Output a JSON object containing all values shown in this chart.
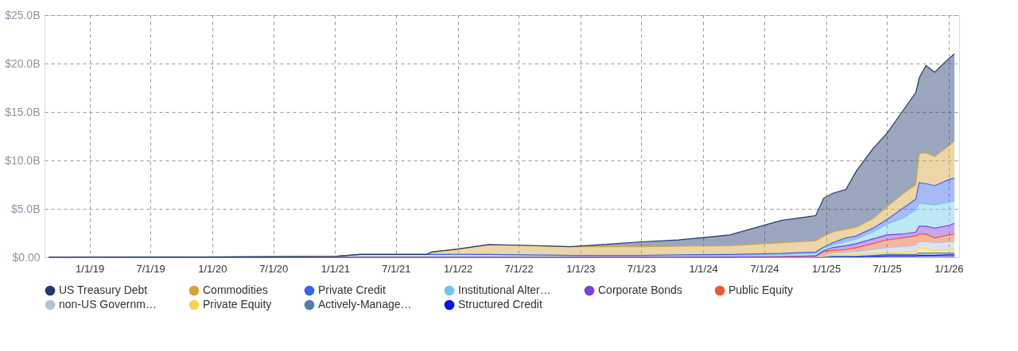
{
  "chart_data": {
    "type": "area",
    "stacked": true,
    "x": [
      "2018-09-01",
      "2019-06-01",
      "2020-06-01",
      "2021-01-01",
      "2021-03-15",
      "2021-10-01",
      "2021-10-15",
      "2022-01-01",
      "2022-04-01",
      "2022-07-01",
      "2022-12-01",
      "2023-03-01",
      "2023-07-01",
      "2023-10-20",
      "2024-03-20",
      "2024-08-20",
      "2024-12-01",
      "2024-12-25",
      "2025-01-20",
      "2025-03-01",
      "2025-04-01",
      "2025-05-20",
      "2025-07-01",
      "2025-08-15",
      "2025-09-25",
      "2025-10-05",
      "2025-10-25",
      "2025-11-20",
      "2026-01-01",
      "2026-01-18"
    ],
    "series": [
      {
        "name": "Structured Credit",
        "color": "#0a14f0",
        "values": [
          0,
          0,
          0,
          0,
          0,
          0,
          0,
          0,
          0,
          0,
          0,
          0,
          0,
          0,
          0,
          0,
          0,
          0.02,
          0.05,
          0.05,
          0.05,
          0.1,
          0.15,
          0.15,
          0.15,
          0.2,
          0.2,
          0.2,
          0.25,
          0.25
        ]
      },
      {
        "name": "Actively-Manage…",
        "color": "#4f7fb0",
        "values": [
          0,
          0,
          0,
          0,
          0,
          0,
          0,
          0,
          0,
          0,
          0,
          0,
          0,
          0,
          0,
          0,
          0.02,
          0.03,
          0.05,
          0.05,
          0.07,
          0.1,
          0.15,
          0.15,
          0.15,
          0.25,
          0.25,
          0.25,
          0.2,
          0.2
        ]
      },
      {
        "name": "Private Equity",
        "color": "#f7d44a",
        "values": [
          0,
          0,
          0,
          0,
          0,
          0,
          0,
          0,
          0,
          0,
          0,
          0,
          0,
          0,
          0,
          0,
          0,
          0.03,
          0.15,
          0.15,
          0.18,
          0.2,
          0.15,
          0.2,
          0.3,
          0.55,
          0.45,
          0.25,
          0.35,
          0.4
        ]
      },
      {
        "name": "non-US Governm…",
        "color": "#b4c3dc",
        "values": [
          0,
          0,
          0,
          0,
          0,
          0,
          0,
          0,
          0,
          0,
          0,
          0,
          0,
          0,
          0,
          0,
          0.03,
          0.12,
          0.2,
          0.25,
          0.3,
          0.4,
          0.55,
          0.6,
          0.65,
          0.6,
          0.7,
          0.8,
          0.8,
          0.75
        ]
      },
      {
        "name": "Public Equity",
        "color": "#eb5a2e",
        "values": [
          0,
          0,
          0,
          0,
          0,
          0,
          0,
          0,
          0,
          0,
          0,
          0.02,
          0.02,
          0.02,
          0.03,
          0.03,
          0.05,
          0.4,
          0.25,
          0.3,
          0.4,
          0.6,
          0.8,
          0.9,
          0.95,
          0.8,
          0.8,
          0.5,
          0.7,
          0.8
        ]
      },
      {
        "name": "Corporate Bonds",
        "color": "#7b3fe0",
        "values": [
          0,
          0,
          0,
          0,
          0,
          0,
          0,
          0,
          0,
          0,
          0,
          0,
          0,
          0,
          0,
          0.05,
          0.05,
          0.1,
          0.3,
          0.4,
          0.4,
          0.5,
          0.5,
          0.4,
          0.4,
          0.8,
          0.8,
          1.0,
          1.0,
          1.1
        ]
      },
      {
        "name": "Institutional Alter…",
        "color": "#6ec9e8",
        "values": [
          0.02,
          0.03,
          0.05,
          0.1,
          0.3,
          0.3,
          0.3,
          0.3,
          0.3,
          0.25,
          0.2,
          0.18,
          0.18,
          0.18,
          0.17,
          0.22,
          0.25,
          0.3,
          0.25,
          0.4,
          0.5,
          0.7,
          1.1,
          1.6,
          2.3,
          2.4,
          2.3,
          2.4,
          2.4,
          2.3
        ]
      },
      {
        "name": "Private Credit",
        "color": "#3d63f0",
        "values": [
          0,
          0,
          0,
          0,
          0,
          0,
          0,
          0,
          0,
          0,
          0,
          0,
          0,
          0.05,
          0.1,
          0.1,
          0.15,
          0.05,
          0.25,
          0.4,
          0.3,
          0.4,
          0.5,
          1.0,
          1.1,
          2.1,
          2.1,
          2.0,
          2.3,
          2.4
        ]
      },
      {
        "name": "Commodities",
        "color": "#d4a53c",
        "values": [
          0,
          0,
          0,
          0,
          0,
          0,
          0.25,
          0.55,
          1.0,
          1.0,
          0.9,
          0.9,
          0.9,
          0.9,
          0.9,
          1.1,
          1.15,
          1.15,
          1.1,
          0.9,
          0.9,
          1.0,
          1.3,
          1.5,
          1.5,
          3.0,
          3.2,
          3.0,
          3.5,
          3.8
        ]
      },
      {
        "name": "US Treasury Debt",
        "color": "#1f3a6e",
        "values": [
          0,
          0,
          0,
          0,
          0,
          0,
          0,
          0,
          0,
          0,
          0,
          0.2,
          0.5,
          0.65,
          1.1,
          2.3,
          2.6,
          3.9,
          4.0,
          4.1,
          5.8,
          7.2,
          7.6,
          8.5,
          9.5,
          7.8,
          9.0,
          8.7,
          9.0,
          9.0
        ]
      }
    ],
    "xlim": [
      "2018-08-20",
      "2026-02-01"
    ],
    "xticks": [
      {
        "value": "2019-01-01",
        "label": "1/1/19"
      },
      {
        "value": "2019-07-01",
        "label": "7/1/19"
      },
      {
        "value": "2020-01-01",
        "label": "1/1/20"
      },
      {
        "value": "2020-07-01",
        "label": "7/1/20"
      },
      {
        "value": "2021-01-01",
        "label": "1/1/21"
      },
      {
        "value": "2021-07-01",
        "label": "7/1/21"
      },
      {
        "value": "2022-01-01",
        "label": "1/1/22"
      },
      {
        "value": "2022-07-01",
        "label": "7/1/22"
      },
      {
        "value": "2023-01-01",
        "label": "1/1/23"
      },
      {
        "value": "2023-07-01",
        "label": "7/1/23"
      },
      {
        "value": "2024-01-01",
        "label": "1/1/24"
      },
      {
        "value": "2024-07-01",
        "label": "7/1/24"
      },
      {
        "value": "2025-01-01",
        "label": "1/1/25"
      },
      {
        "value": "2025-07-01",
        "label": "7/1/25"
      },
      {
        "value": "2026-01-01",
        "label": "1/1/26"
      }
    ],
    "ylim": [
      0,
      25
    ],
    "yticks": [
      {
        "value": 0,
        "label": "$0.00"
      },
      {
        "value": 5,
        "label": "$5.0B"
      },
      {
        "value": 10,
        "label": "$10.0B"
      },
      {
        "value": 15,
        "label": "$15.0B"
      },
      {
        "value": 20,
        "label": "$20.0B"
      },
      {
        "value": 25,
        "label": "$25.0B"
      }
    ],
    "grid": true,
    "legend": "bottom"
  }
}
